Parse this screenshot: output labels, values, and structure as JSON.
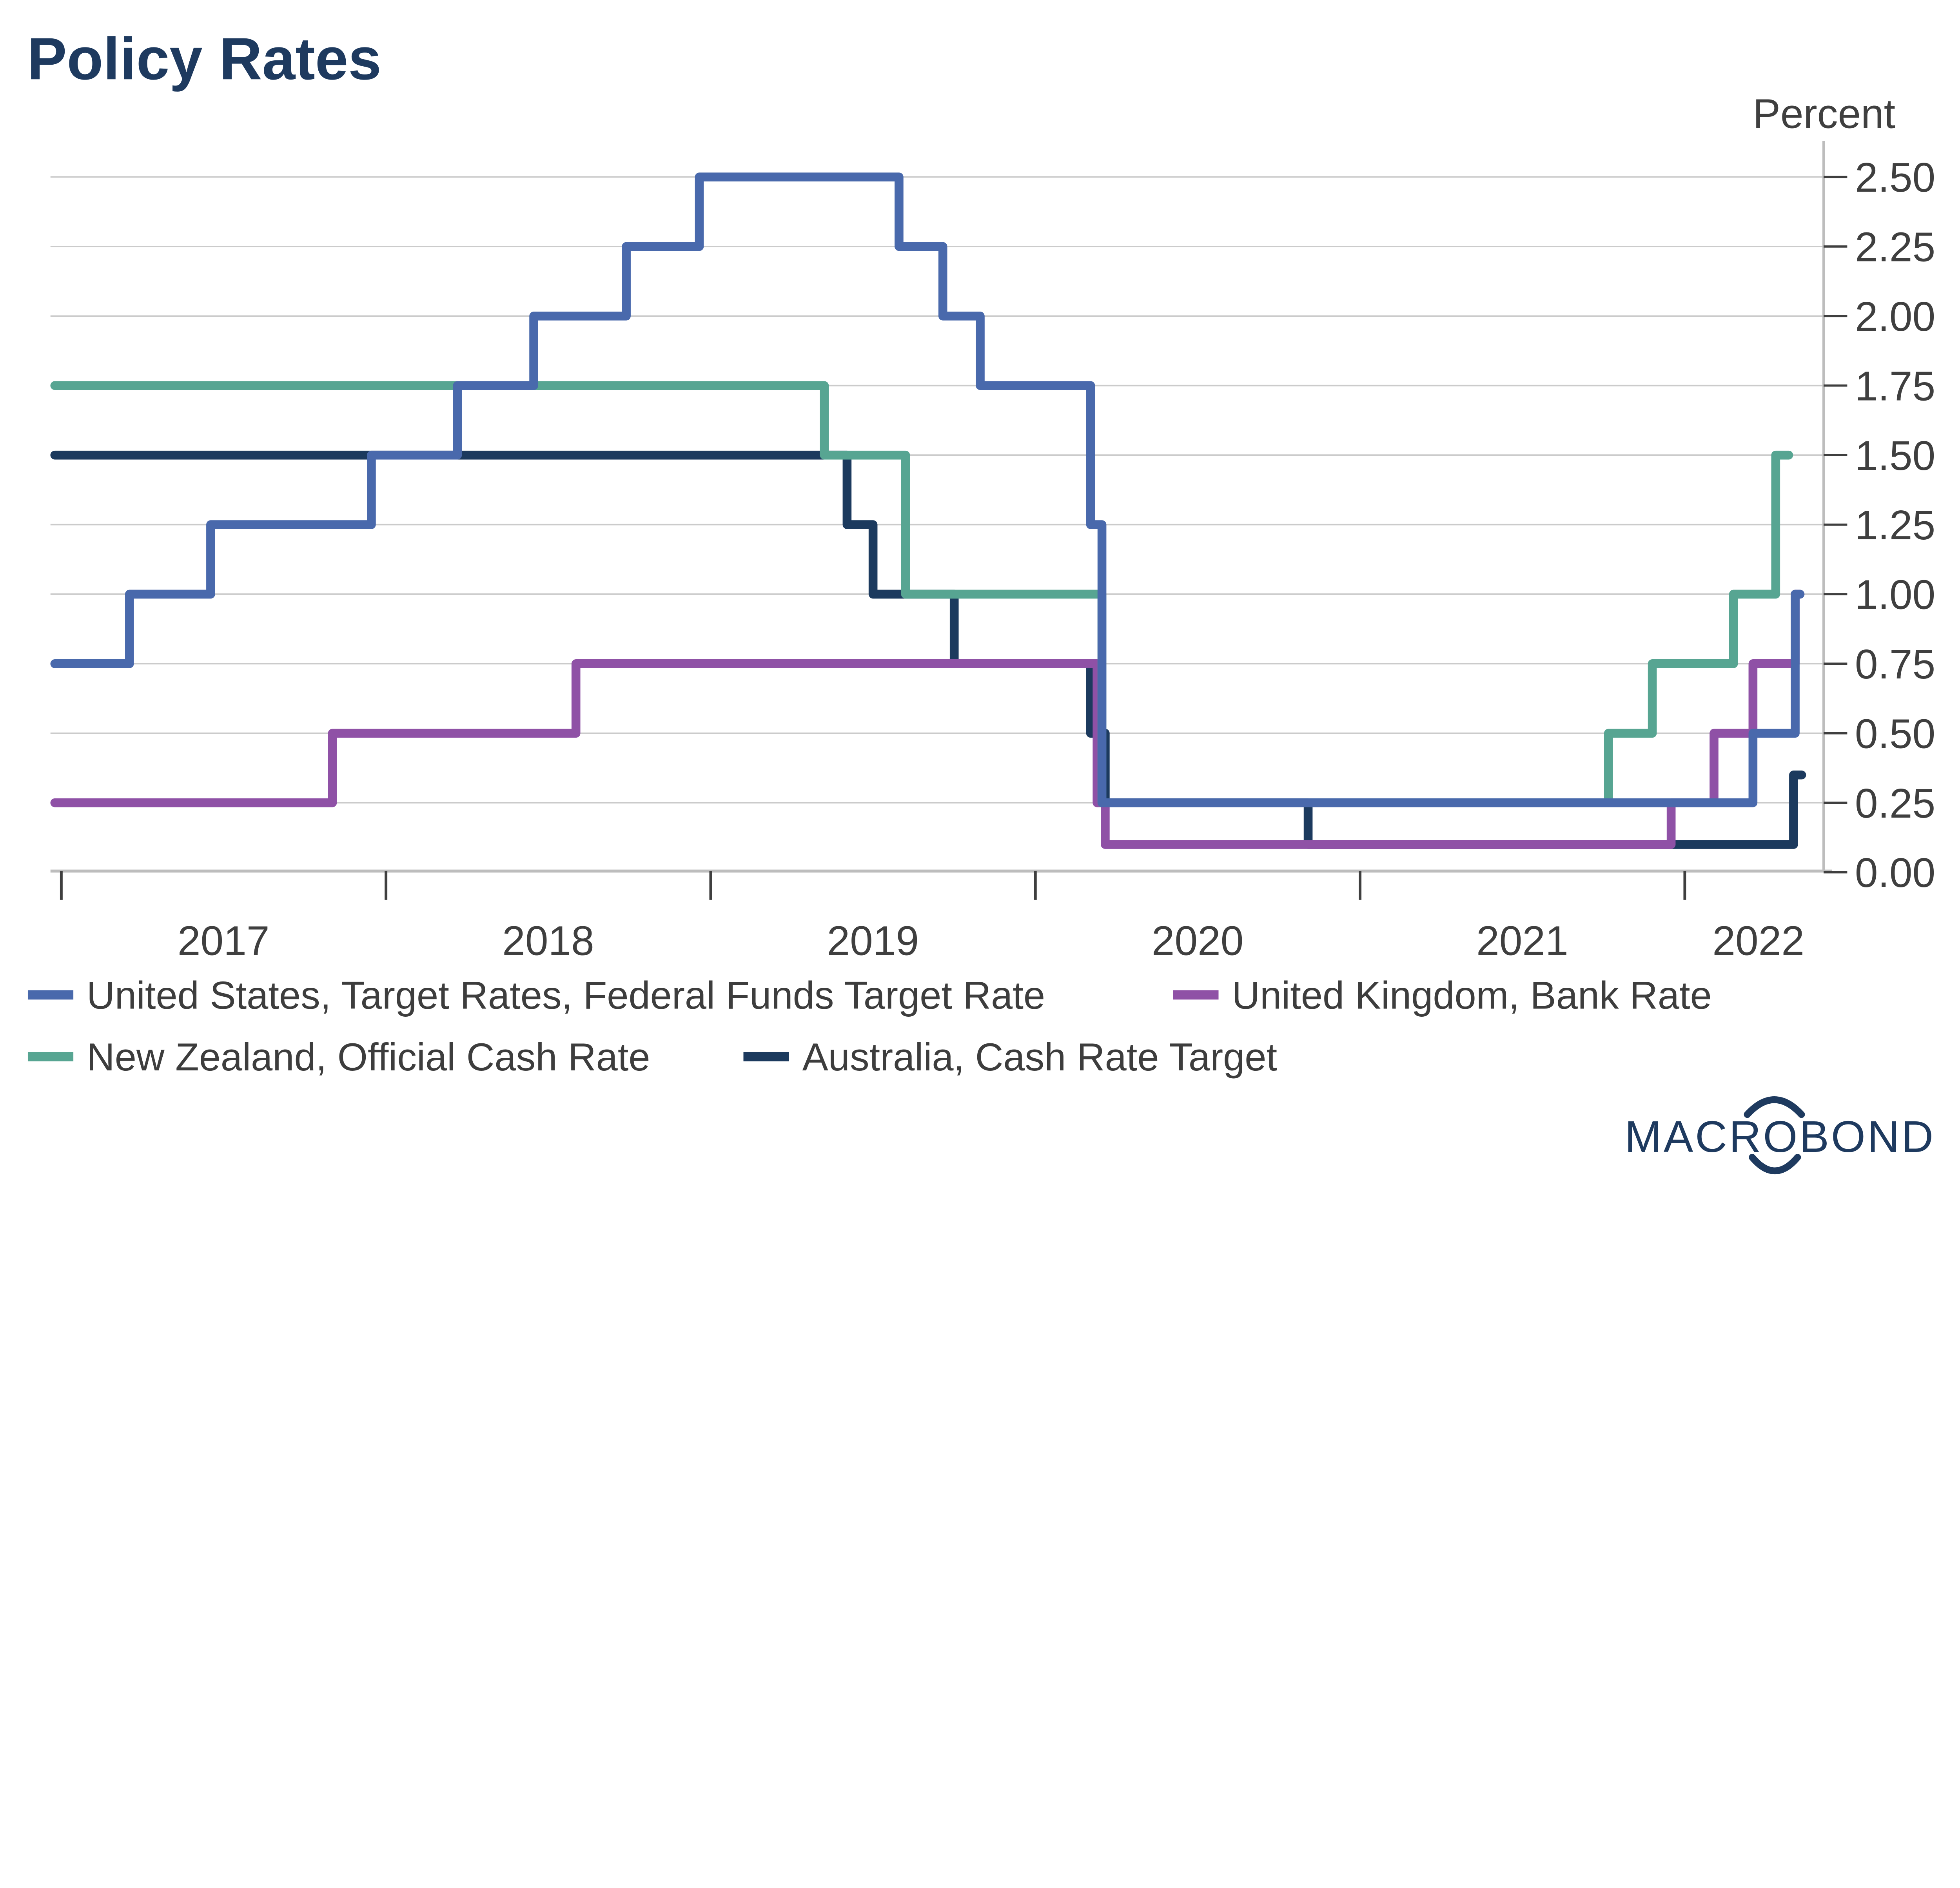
{
  "title": "Policy Rates",
  "y_axis": {
    "unit_label": "Percent",
    "tick_labels": [
      "2.50",
      "2.25",
      "2.00",
      "1.75",
      "1.50",
      "1.25",
      "1.00",
      "0.75",
      "0.50",
      "0.25",
      "0.00"
    ],
    "tick_values": [
      2.5,
      2.25,
      2.0,
      1.75,
      1.5,
      1.25,
      1.0,
      0.75,
      0.5,
      0.25,
      0.0
    ]
  },
  "x_axis": {
    "year_labels": [
      "2017",
      "2018",
      "2019",
      "2020",
      "2021",
      "2022"
    ],
    "year_values": [
      2017,
      2018,
      2019,
      2020,
      2021,
      2022
    ]
  },
  "legend": {
    "items": [
      {
        "label": "United States, Target Rates, Federal Funds Target Rate",
        "color": "#4969ac"
      },
      {
        "label": "United Kingdom, Bank Rate",
        "color": "#8f51a6"
      },
      {
        "label": "New Zealand, Official Cash Rate",
        "color": "#57a592"
      },
      {
        "label": "Australia, Cash Rate Target",
        "color": "#1c3a5e"
      }
    ]
  },
  "logo": {
    "text": "MACROBOND"
  },
  "colors": {
    "title": "#1e3a5f",
    "logo": "#1e3a5f",
    "axis_line": "#bdbdbd",
    "gridline": "#cbcbcb",
    "tick_mark": "#3f3f3f",
    "tick_label": "#3f3f3f",
    "legend_text": "#3d3d3d",
    "background": "#ffffff"
  },
  "chart_data": {
    "type": "line",
    "subtype": "step-after",
    "title": "Policy Rates",
    "ylabel": "Percent",
    "ylim": [
      0.0,
      2.63
    ],
    "xlim": [
      2016.98,
      2022.45
    ],
    "grid": "horizontal-on",
    "legend_position": "bottom-left",
    "gridline_values": [
      0.25,
      0.5,
      0.75,
      1.0,
      1.25,
      1.5,
      1.75,
      2.0,
      2.25,
      2.5
    ],
    "series": [
      {
        "name": "Australia, Cash Rate Target",
        "color": "#1c3a5e",
        "points": [
          [
            2016.98,
            1.5
          ],
          [
            2019.42,
            1.25
          ],
          [
            2019.5,
            1.0
          ],
          [
            2019.75,
            0.75
          ],
          [
            2020.17,
            0.5
          ],
          [
            2020.215,
            0.25
          ],
          [
            2020.84,
            0.1
          ],
          [
            2022.335,
            0.35
          ]
        ],
        "end": 2022.36
      },
      {
        "name": "United Kingdom, Bank Rate",
        "color": "#8f51a6",
        "points": [
          [
            2016.98,
            0.25
          ],
          [
            2017.835,
            0.5
          ],
          [
            2018.585,
            0.75
          ],
          [
            2020.19,
            0.25
          ],
          [
            2020.215,
            0.1
          ],
          [
            2021.958,
            0.25
          ],
          [
            2022.09,
            0.5
          ],
          [
            2022.21,
            0.75
          ],
          [
            2022.34,
            1.0
          ]
        ],
        "end": 2022.355
      },
      {
        "name": "New Zealand, Official Cash Rate",
        "color": "#57a592",
        "points": [
          [
            2016.98,
            1.75
          ],
          [
            2019.35,
            1.5
          ],
          [
            2019.6,
            1.0
          ],
          [
            2020.205,
            0.25
          ],
          [
            2021.765,
            0.5
          ],
          [
            2021.9,
            0.75
          ],
          [
            2022.15,
            1.0
          ],
          [
            2022.28,
            1.5
          ]
        ],
        "end": 2022.32
      },
      {
        "name": "United States, Target Rates, Federal Funds Target Rate",
        "color": "#4969ac",
        "points": [
          [
            2016.98,
            0.75
          ],
          [
            2017.21,
            1.0
          ],
          [
            2017.46,
            1.25
          ],
          [
            2017.955,
            1.5
          ],
          [
            2018.22,
            1.75
          ],
          [
            2018.455,
            2.0
          ],
          [
            2018.74,
            2.25
          ],
          [
            2018.965,
            2.5
          ],
          [
            2019.58,
            2.25
          ],
          [
            2019.715,
            2.0
          ],
          [
            2019.83,
            1.75
          ],
          [
            2020.17,
            1.25
          ],
          [
            2020.205,
            0.25
          ],
          [
            2022.21,
            0.5
          ],
          [
            2022.34,
            1.0
          ]
        ],
        "end": 2022.355
      }
    ]
  }
}
